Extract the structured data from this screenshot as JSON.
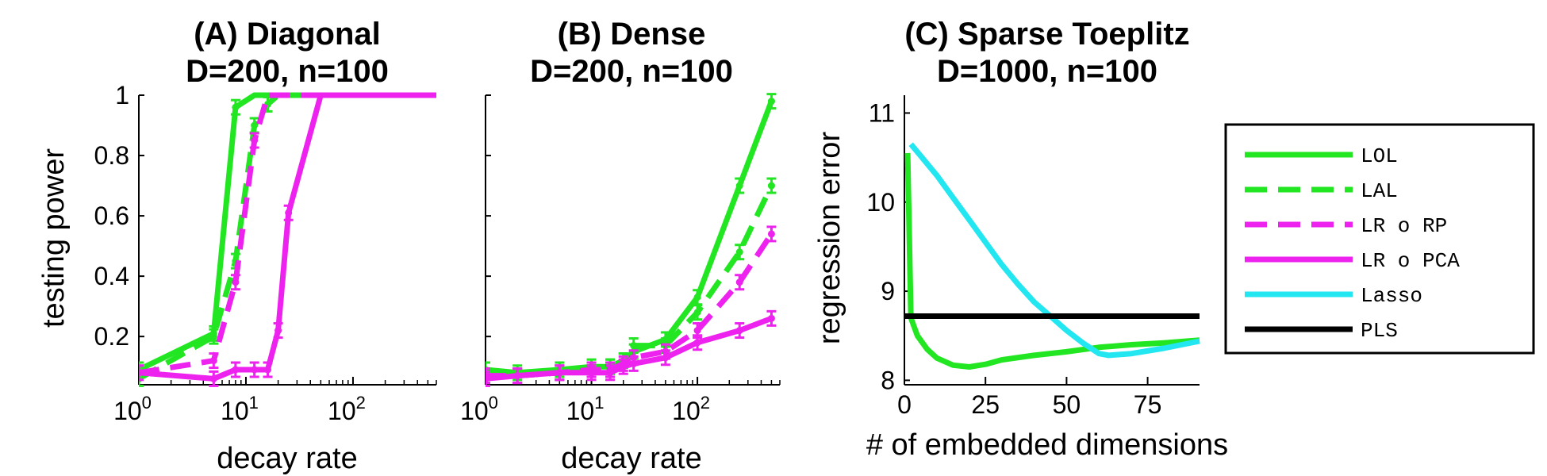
{
  "colors": {
    "LOL": "#22e622",
    "LAL": "#22e622",
    "LR_RP": "#ee22ee",
    "LR_PCA": "#ee22ee",
    "Lasso": "#22e6f0",
    "PLS": "#000000"
  },
  "chart_data": [
    {
      "type": "line",
      "title": "(A) Diagonal",
      "subtitle": "D=200, n=100",
      "xlabel": "decay rate",
      "ylabel": "testing power",
      "xscale": "log",
      "xlim": [
        1,
        600
      ],
      "ylim": [
        0.04,
        1
      ],
      "xticks": [
        {
          "v": 1,
          "b": "10",
          "e": "0"
        },
        {
          "v": 10,
          "b": "10",
          "e": "1"
        },
        {
          "v": 100,
          "b": "10",
          "e": "2"
        }
      ],
      "yticks": [
        {
          "v": 0.2,
          "t": "0.2"
        },
        {
          "v": 0.4,
          "t": "0.4"
        },
        {
          "v": 0.6,
          "t": "0.6"
        },
        {
          "v": 0.8,
          "t": "0.8"
        },
        {
          "v": 1,
          "t": "1"
        }
      ],
      "series": [
        {
          "name": "LOL",
          "dash": false,
          "x": [
            1,
            5,
            8,
            12,
            16,
            20,
            25,
            50,
            100,
            250,
            600
          ],
          "y": [
            0.09,
            0.21,
            0.96,
            1.0,
            1.0,
            1.0,
            1.0,
            1.0,
            1.0,
            1.0,
            1.0
          ],
          "errbars": true
        },
        {
          "name": "LAL",
          "dash": true,
          "x": [
            1,
            5,
            8,
            12,
            16,
            20,
            25,
            50,
            100,
            250,
            600
          ],
          "y": [
            0.06,
            0.2,
            0.45,
            0.9,
            0.97,
            1.0,
            1.0,
            1.0,
            1.0,
            1.0,
            1.0
          ],
          "errbars": true
        },
        {
          "name": "LR o RP",
          "dash": true,
          "x": [
            1,
            5,
            8,
            12,
            16,
            20,
            25,
            50,
            100,
            250,
            600
          ],
          "y": [
            0.08,
            0.12,
            0.38,
            0.85,
            1.0,
            1.0,
            1.0,
            1.0,
            1.0,
            1.0,
            1.0
          ],
          "errbars": true
        },
        {
          "name": "LR o PCA",
          "dash": false,
          "x": [
            1,
            5,
            8,
            12,
            16,
            20,
            25,
            50,
            100,
            250,
            600
          ],
          "y": [
            0.08,
            0.06,
            0.09,
            0.09,
            0.09,
            0.22,
            0.61,
            1.0,
            1.0,
            1.0,
            1.0
          ],
          "errbars": true
        }
      ]
    },
    {
      "type": "line",
      "title": "(B) Dense",
      "subtitle": "D=200, n=100",
      "xlabel": "decay rate",
      "ylabel": "",
      "xscale": "log",
      "xlim": [
        1,
        600
      ],
      "ylim": [
        0.04,
        1
      ],
      "xticks": [
        {
          "v": 1,
          "b": "10",
          "e": "0"
        },
        {
          "v": 10,
          "b": "10",
          "e": "1"
        },
        {
          "v": 100,
          "b": "10",
          "e": "2"
        }
      ],
      "yticks": [
        {
          "v": 0.2,
          "t": ""
        },
        {
          "v": 0.4,
          "t": ""
        },
        {
          "v": 0.6,
          "t": ""
        },
        {
          "v": 0.8,
          "t": ""
        },
        {
          "v": 1,
          "t": ""
        }
      ],
      "series": [
        {
          "name": "LOL",
          "dash": false,
          "x": [
            1,
            2,
            5,
            10,
            15,
            20,
            25,
            50,
            100,
            250,
            500
          ],
          "y": [
            0.09,
            0.08,
            0.09,
            0.1,
            0.1,
            0.12,
            0.15,
            0.19,
            0.33,
            0.7,
            0.98
          ],
          "errbars": true
        },
        {
          "name": "LAL",
          "dash": true,
          "x": [
            1,
            2,
            5,
            10,
            15,
            20,
            25,
            50,
            100,
            250,
            500
          ],
          "y": [
            0.07,
            0.07,
            0.08,
            0.09,
            0.1,
            0.12,
            0.17,
            0.17,
            0.28,
            0.48,
            0.7
          ],
          "errbars": true
        },
        {
          "name": "LR o RP",
          "dash": true,
          "x": [
            1,
            2,
            5,
            10,
            15,
            20,
            25,
            50,
            100,
            250,
            500
          ],
          "y": [
            0.07,
            0.07,
            0.08,
            0.09,
            0.09,
            0.11,
            0.13,
            0.15,
            0.22,
            0.38,
            0.54
          ],
          "errbars": true
        },
        {
          "name": "LR o PCA",
          "dash": false,
          "x": [
            1,
            2,
            5,
            10,
            15,
            20,
            25,
            50,
            100,
            250,
            500
          ],
          "y": [
            0.06,
            0.07,
            0.08,
            0.08,
            0.08,
            0.1,
            0.11,
            0.13,
            0.18,
            0.22,
            0.26
          ],
          "errbars": true
        }
      ]
    },
    {
      "type": "line",
      "title": "(C) Sparse Toeplitz",
      "subtitle": "D=1000, n=100",
      "xlabel": "# of embedded dimensions",
      "ylabel": "regression error",
      "xscale": "linear",
      "xlim": [
        0,
        91
      ],
      "ylim": [
        7.95,
        11.2
      ],
      "xticks": [
        {
          "v": 0,
          "t": "0"
        },
        {
          "v": 25,
          "t": "25"
        },
        {
          "v": 50,
          "t": "50"
        },
        {
          "v": 75,
          "t": "75"
        }
      ],
      "yticks": [
        {
          "v": 8,
          "t": "8"
        },
        {
          "v": 9,
          "t": "9"
        },
        {
          "v": 10,
          "t": "10"
        },
        {
          "v": 11,
          "t": "11"
        }
      ],
      "series": [
        {
          "name": "LOL",
          "dash": false,
          "x": [
            1,
            2,
            4,
            7,
            10,
            15,
            20,
            25,
            30,
            40,
            50,
            60,
            70,
            80,
            91
          ],
          "y": [
            10.55,
            8.7,
            8.5,
            8.35,
            8.25,
            8.17,
            8.15,
            8.18,
            8.23,
            8.28,
            8.32,
            8.37,
            8.4,
            8.42,
            8.45
          ]
        },
        {
          "name": "Lasso",
          "dash": false,
          "x": [
            2,
            5,
            10,
            15,
            20,
            25,
            30,
            35,
            40,
            45,
            50,
            55,
            60,
            63,
            70,
            80,
            91
          ],
          "y": [
            10.65,
            10.52,
            10.3,
            10.05,
            9.8,
            9.55,
            9.3,
            9.08,
            8.88,
            8.72,
            8.56,
            8.42,
            8.3,
            8.28,
            8.3,
            8.36,
            8.44
          ]
        },
        {
          "name": "PLS",
          "dash": false,
          "x": [
            0,
            91
          ],
          "y": [
            8.72,
            8.72
          ]
        }
      ]
    }
  ],
  "legend": {
    "placement": "right",
    "entries": [
      {
        "key": "LOL",
        "label": "LOL",
        "dash": false
      },
      {
        "key": "LAL",
        "label": "LAL",
        "dash": true
      },
      {
        "key": "LR_RP",
        "label": "LR o RP",
        "dash": true
      },
      {
        "key": "LR_PCA",
        "label": "LR o PCA",
        "dash": false
      },
      {
        "key": "Lasso",
        "label": "Lasso",
        "dash": false
      },
      {
        "key": "PLS",
        "label": "PLS",
        "dash": false
      }
    ]
  }
}
